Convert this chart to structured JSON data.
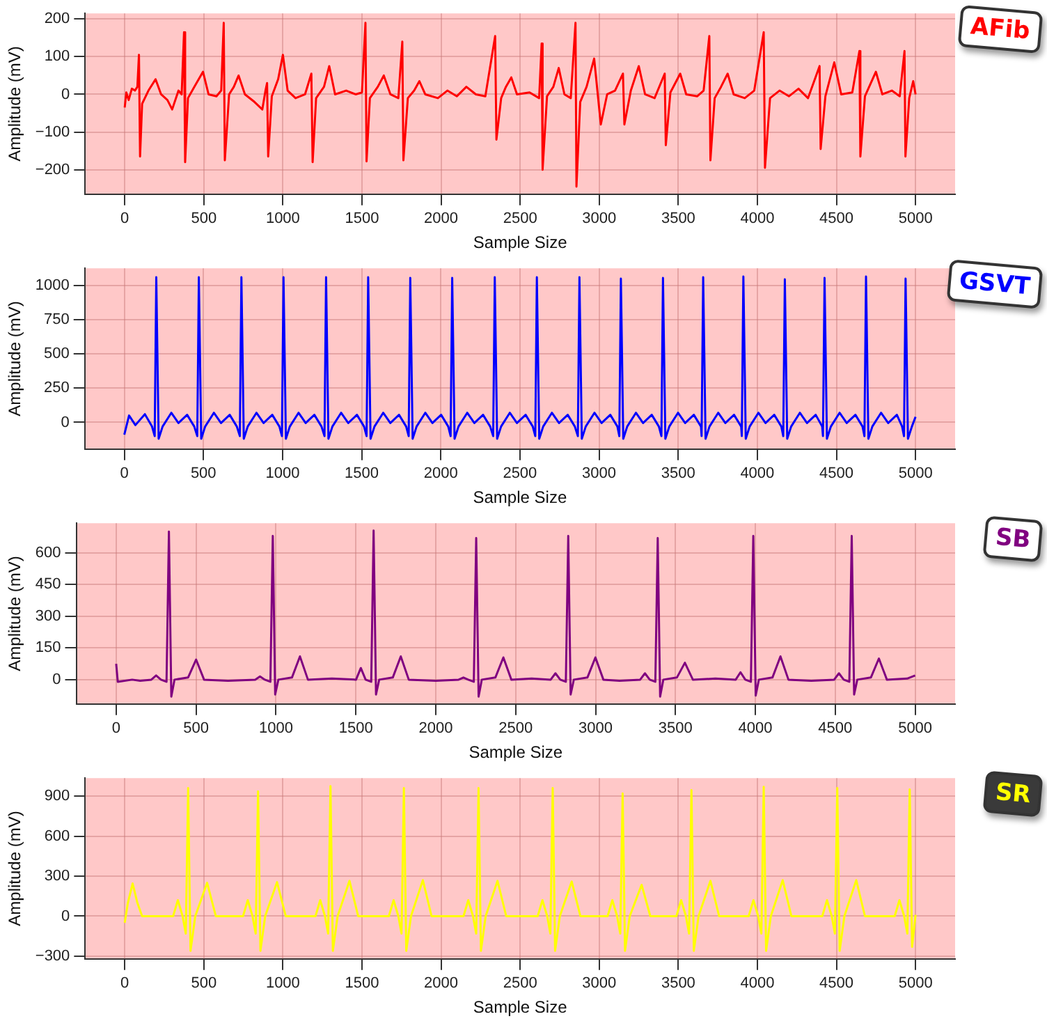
{
  "chart_data": [
    {
      "type": "line",
      "xlabel": "Sample Size",
      "ylabel": "Amplitude (mV)",
      "xlim": [
        -250,
        5250
      ],
      "xticks": [
        0,
        500,
        1000,
        1500,
        2000,
        2500,
        3000,
        3500,
        4000,
        4500,
        5000
      ],
      "ylim": [
        -265,
        215
      ],
      "yticks": [
        -200,
        -100,
        0,
        100,
        200
      ],
      "grid": true,
      "series": [
        {
          "name": "AFib",
          "color": "#ff0000",
          "x": [
            0,
            10,
            25,
            45,
            65,
            80,
            90,
            97,
            110,
            150,
            195,
            230,
            270,
            300,
            340,
            360,
            375,
            382,
            400,
            440,
            495,
            530,
            580,
            610,
            626,
            633,
            660,
            690,
            720,
            760,
            820,
            870,
            890,
            900,
            907,
            930,
            970,
            1000,
            1030,
            1080,
            1140,
            1180,
            1188,
            1210,
            1260,
            1293,
            1330,
            1400,
            1460,
            1500,
            1522,
            1529,
            1550,
            1600,
            1638,
            1680,
            1730,
            1755,
            1762,
            1790,
            1830,
            1863,
            1900,
            1980,
            2040,
            2100,
            2160,
            2220,
            2280,
            2342,
            2350,
            2380,
            2410,
            2444,
            2480,
            2560,
            2620,
            2636,
            2642,
            2670,
            2710,
            2744,
            2780,
            2820,
            2850,
            2856,
            2880,
            2920,
            2968,
            3010,
            3050,
            3100,
            3150,
            3159,
            3200,
            3250,
            3290,
            3350,
            3414,
            3421,
            3450,
            3512,
            3550,
            3620,
            3660,
            3696,
            3703,
            3730,
            3770,
            3812,
            3850,
            3920,
            3980,
            4040,
            4048,
            4080,
            4140,
            4200,
            4260,
            4320,
            4393,
            4400,
            4430,
            4486,
            4530,
            4600,
            4645,
            4651,
            4680,
            4749,
            4790,
            4850,
            4900,
            4930,
            4936,
            4960,
            4985,
            5000
          ],
          "values": [
            -35,
            5,
            -15,
            15,
            10,
            20,
            105,
            -165,
            -25,
            10,
            40,
            0,
            -15,
            -40,
            10,
            0,
            165,
            -180,
            -10,
            20,
            60,
            0,
            -5,
            10,
            190,
            -175,
            0,
            20,
            50,
            0,
            -20,
            -40,
            10,
            30,
            -165,
            -5,
            40,
            105,
            10,
            -10,
            0,
            55,
            -180,
            -10,
            20,
            75,
            0,
            10,
            0,
            5,
            190,
            -178,
            -10,
            20,
            50,
            0,
            -10,
            140,
            -175,
            -10,
            10,
            35,
            0,
            -10,
            10,
            -5,
            20,
            0,
            -5,
            155,
            -120,
            -10,
            20,
            45,
            0,
            5,
            -10,
            135,
            -200,
            -5,
            20,
            70,
            0,
            -10,
            190,
            -245,
            -20,
            20,
            95,
            -80,
            0,
            10,
            55,
            -80,
            10,
            75,
            0,
            -10,
            55,
            -135,
            5,
            55,
            0,
            -5,
            10,
            155,
            -175,
            -10,
            20,
            55,
            0,
            -10,
            10,
            165,
            -195,
            -10,
            10,
            -5,
            15,
            -10,
            75,
            -145,
            -5,
            85,
            0,
            5,
            115,
            -165,
            -5,
            60,
            0,
            10,
            -5,
            115,
            -165,
            -10,
            35,
            0
          ]
        }
      ]
    },
    {
      "type": "line",
      "xlabel": "Sample Size",
      "ylabel": "Amplitude (mV)",
      "xlim": [
        -250,
        5250
      ],
      "xticks": [
        0,
        500,
        1000,
        1500,
        2000,
        2500,
        3000,
        3500,
        4000,
        4500,
        5000
      ],
      "ylim": [
        -195,
        1125
      ],
      "yticks": [
        0,
        250,
        500,
        750,
        1000
      ],
      "grid": true,
      "series": [
        {
          "name": "GSVT",
          "color": "#0000ff",
          "x": [
            0,
            30,
            70,
            130,
            175,
            192,
            202,
            217,
            242,
            297,
            342,
            397,
            442,
            461,
            471,
            486,
            511,
            566,
            611,
            666,
            711,
            730,
            740,
            755,
            780,
            835,
            880,
            935,
            980,
            996,
            1006,
            1021,
            1046,
            1101,
            1146,
            1201,
            1246,
            1265,
            1275,
            1290,
            1315,
            1370,
            1415,
            1470,
            1515,
            1531,
            1541,
            1556,
            1581,
            1636,
            1681,
            1736,
            1781,
            1797,
            1807,
            1822,
            1847,
            1902,
            1947,
            2002,
            2047,
            2062,
            2072,
            2087,
            2112,
            2167,
            2212,
            2267,
            2312,
            2331,
            2341,
            2356,
            2381,
            2436,
            2481,
            2536,
            2581,
            2597,
            2607,
            2622,
            2647,
            2702,
            2747,
            2802,
            2847,
            2866,
            2876,
            2891,
            2916,
            2971,
            3016,
            3071,
            3116,
            3128,
            3138,
            3153,
            3178,
            3233,
            3278,
            3333,
            3378,
            3394,
            3404,
            3419,
            3444,
            3499,
            3544,
            3599,
            3644,
            3648,
            3658,
            3673,
            3698,
            3753,
            3798,
            3853,
            3898,
            3902,
            3912,
            3927,
            3952,
            4007,
            4052,
            4107,
            4152,
            4164,
            4174,
            4189,
            4214,
            4269,
            4314,
            4369,
            4410,
            4415,
            4425,
            4440,
            4465,
            4520,
            4565,
            4620,
            4665,
            4677,
            4687,
            4702,
            4727,
            4782,
            4827,
            4882,
            4915,
            4927,
            4937,
            4952,
            4977,
            5000
          ],
          "values": [
            -90,
            50,
            -20,
            60,
            -30,
            -100,
            1060,
            -120,
            -30,
            70,
            -5,
            55,
            -30,
            -100,
            1060,
            -120,
            -30,
            70,
            -5,
            55,
            -30,
            -100,
            1060,
            -120,
            -30,
            70,
            -5,
            55,
            -30,
            -100,
            1060,
            -120,
            -30,
            70,
            -5,
            55,
            -30,
            -100,
            1060,
            -120,
            -30,
            70,
            -5,
            55,
            -30,
            -100,
            1060,
            -120,
            -30,
            70,
            -5,
            55,
            -30,
            -100,
            1055,
            -120,
            -30,
            70,
            -5,
            55,
            -30,
            -100,
            1055,
            -120,
            -30,
            70,
            -5,
            55,
            -30,
            -100,
            1060,
            -120,
            -30,
            70,
            -5,
            55,
            -30,
            -100,
            1060,
            -120,
            -30,
            70,
            -5,
            55,
            -30,
            -100,
            1060,
            -120,
            -30,
            70,
            -5,
            55,
            -30,
            -100,
            1050,
            -120,
            -30,
            70,
            -5,
            55,
            -30,
            -100,
            1055,
            -120,
            -30,
            70,
            -5,
            55,
            -30,
            -100,
            1060,
            -120,
            -30,
            70,
            -5,
            55,
            -30,
            -100,
            1065,
            -120,
            -30,
            70,
            -5,
            55,
            -30,
            -100,
            1045,
            -120,
            -30,
            70,
            -5,
            55,
            -30,
            -100,
            1055,
            -120,
            -30,
            70,
            -5,
            55,
            -30,
            -100,
            1065,
            -120,
            -30,
            70,
            -5,
            55,
            -30,
            -100,
            1050,
            -120,
            -30,
            40
          ]
        }
      ]
    },
    {
      "type": "line",
      "xlabel": "Sample Size",
      "ylabel": "Amplitude (mV)",
      "xlim": [
        -250,
        5250
      ],
      "xticks": [
        0,
        500,
        1000,
        1500,
        2000,
        2500,
        3000,
        3500,
        4000,
        4500,
        5000
      ],
      "ylim": [
        -115,
        740
      ],
      "yticks": [
        0,
        150,
        300,
        450,
        600
      ],
      "grid": true,
      "series": [
        {
          "name": "SB",
          "color": "#800080",
          "x": [
            0,
            10,
            100,
            150,
            220,
            250,
            280,
            315,
            330,
            345,
            365,
            450,
            500,
            550,
            700,
            870,
            900,
            930,
            965,
            980,
            995,
            1015,
            1100,
            1150,
            1200,
            1350,
            1501,
            1531,
            1561,
            1596,
            1611,
            1626,
            1646,
            1731,
            1781,
            1831,
            2000,
            2143,
            2173,
            2203,
            2238,
            2253,
            2268,
            2288,
            2373,
            2423,
            2473,
            2600,
            2719,
            2749,
            2779,
            2814,
            2829,
            2844,
            2864,
            2949,
            2999,
            3049,
            3150,
            3279,
            3309,
            3339,
            3374,
            3389,
            3404,
            3424,
            3509,
            3559,
            3609,
            3750,
            3877,
            3907,
            3937,
            3972,
            3987,
            4002,
            4022,
            4107,
            4157,
            4207,
            4350,
            4493,
            4523,
            4553,
            4588,
            4603,
            4618,
            4638,
            4723,
            4773,
            4823,
            4950,
            5000
          ],
          "values": [
            75,
            -10,
            0,
            -5,
            0,
            20,
            0,
            -10,
            700,
            -80,
            0,
            10,
            95,
            0,
            -5,
            0,
            15,
            0,
            -10,
            680,
            -70,
            0,
            10,
            110,
            0,
            5,
            0,
            55,
            0,
            -10,
            705,
            -70,
            0,
            10,
            110,
            0,
            -5,
            0,
            10,
            0,
            -10,
            670,
            -80,
            0,
            10,
            105,
            0,
            5,
            0,
            30,
            0,
            -10,
            680,
            -70,
            0,
            10,
            105,
            0,
            -5,
            0,
            30,
            0,
            -10,
            670,
            -80,
            0,
            10,
            80,
            0,
            5,
            0,
            35,
            0,
            -10,
            680,
            -75,
            0,
            10,
            110,
            0,
            -5,
            0,
            30,
            0,
            -10,
            680,
            -70,
            0,
            10,
            100,
            0,
            5,
            20
          ]
        }
      ]
    },
    {
      "type": "line",
      "xlabel": "Sample Size",
      "ylabel": "Amplitude (mV)",
      "xlim": [
        -250,
        5250
      ],
      "xticks": [
        0,
        500,
        1000,
        1500,
        2000,
        2500,
        3000,
        3500,
        4000,
        4500,
        5000
      ],
      "ylim": [
        -320,
        1035
      ],
      "yticks": [
        -300,
        0,
        300,
        600,
        900
      ],
      "grid": true,
      "series": [
        {
          "name": "SR",
          "color": "#ffff00",
          "x": [
            0,
            20,
            50,
            80,
            110,
            306,
            336,
            366,
            386,
            401,
            416,
            446,
            521,
            576,
            748,
            778,
            808,
            828,
            843,
            858,
            888,
            963,
            1018,
            1206,
            1236,
            1266,
            1286,
            1301,
            1316,
            1346,
            1421,
            1476,
            1670,
            1700,
            1730,
            1750,
            1765,
            1780,
            1810,
            1885,
            1940,
            2142,
            2172,
            2202,
            2222,
            2237,
            2252,
            2282,
            2357,
            2412,
            2611,
            2641,
            2671,
            2691,
            2706,
            2721,
            2751,
            2826,
            2881,
            3053,
            3083,
            3113,
            3133,
            3148,
            3163,
            3193,
            3268,
            3323,
            3488,
            3518,
            3548,
            3568,
            3583,
            3598,
            3628,
            3703,
            3758,
            3945,
            3975,
            4005,
            4025,
            4040,
            4055,
            4085,
            4160,
            4215,
            4410,
            4440,
            4470,
            4490,
            4505,
            4520,
            4550,
            4625,
            4680,
            4868,
            4898,
            4928,
            4948,
            4963,
            4978,
            5000
          ],
          "values": [
            -50,
            100,
            245,
            100,
            0,
            0,
            120,
            0,
            -130,
            960,
            -260,
            0,
            250,
            0,
            0,
            120,
            0,
            -130,
            935,
            -260,
            0,
            255,
            0,
            0,
            120,
            0,
            -130,
            975,
            -260,
            0,
            265,
            0,
            0,
            120,
            0,
            -130,
            960,
            -260,
            0,
            270,
            0,
            0,
            120,
            0,
            -130,
            960,
            -260,
            0,
            265,
            0,
            0,
            120,
            0,
            -130,
            960,
            -260,
            0,
            260,
            0,
            0,
            120,
            0,
            -130,
            920,
            -260,
            0,
            235,
            0,
            0,
            120,
            0,
            -130,
            945,
            -260,
            0,
            265,
            0,
            0,
            120,
            0,
            -130,
            970,
            -260,
            0,
            270,
            0,
            0,
            120,
            0,
            -130,
            960,
            -260,
            0,
            270,
            0,
            0,
            120,
            0,
            -130,
            950,
            -230,
            10
          ]
        }
      ]
    }
  ]
}
